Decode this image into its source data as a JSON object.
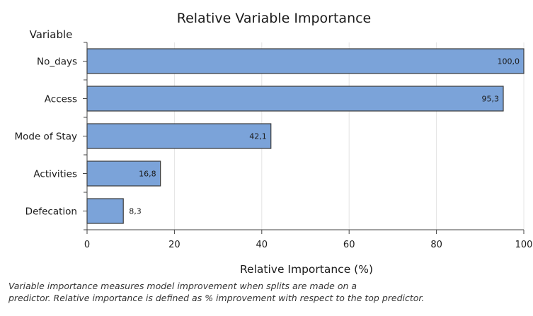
{
  "chart_data": {
    "type": "bar",
    "orientation": "horizontal",
    "title": "Relative Variable Importance",
    "ylabel": "Variable",
    "xlabel": "Relative Importance (%)",
    "categories": [
      "No_days",
      "Access",
      "Mode of Stay",
      "Activities",
      "Defecation"
    ],
    "values": [
      100.0,
      95.3,
      42.1,
      16.8,
      8.3
    ],
    "value_labels": [
      "100,0",
      "95,3",
      "42,1",
      "16,8",
      "8,3"
    ],
    "xlim": [
      0,
      100
    ],
    "xticks": [
      0,
      20,
      40,
      60,
      80,
      100
    ],
    "grid": "vertical",
    "bar_color": "#7ba3d9",
    "bar_edge_color": "#3a3a3a"
  },
  "footnote": {
    "line1": "Variable importance measures model improvement when splits are made on a",
    "line2": "predictor. Relative importance is defined as % improvement with respect to the top predictor."
  }
}
